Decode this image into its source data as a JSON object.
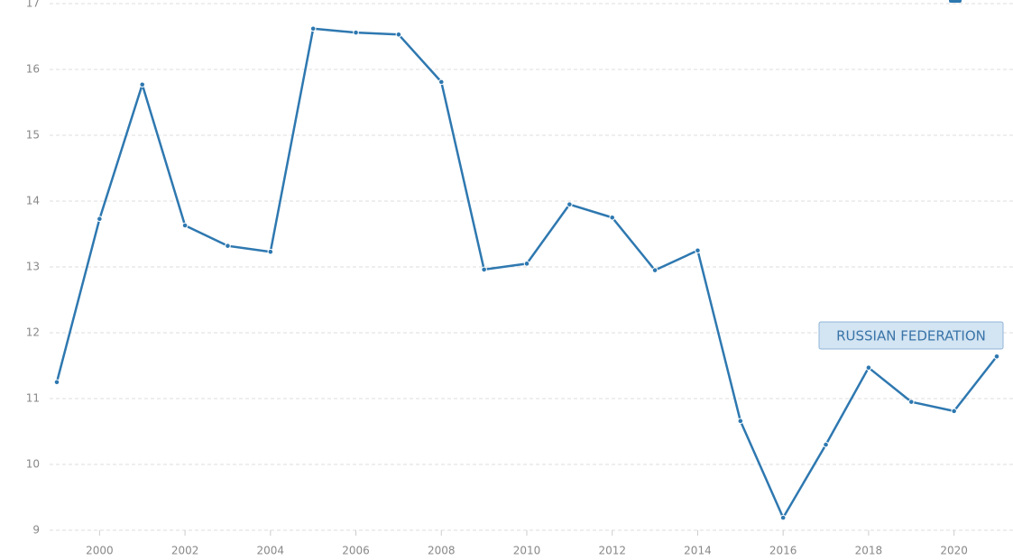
{
  "chart_data": {
    "type": "line",
    "x": [
      1999,
      2000,
      2001,
      2002,
      2003,
      2004,
      2005,
      2006,
      2007,
      2008,
      2009,
      2010,
      2011,
      2012,
      2013,
      2014,
      2015,
      2016,
      2017,
      2018,
      2019,
      2020,
      2021
    ],
    "series": [
      {
        "name": "RUSSIAN FEDERATION",
        "color": "#2e78b0",
        "values": [
          11.25,
          13.73,
          15.77,
          13.63,
          13.32,
          13.23,
          16.62,
          16.56,
          16.53,
          15.81,
          12.96,
          13.05,
          13.95,
          13.75,
          12.95,
          13.25,
          10.66,
          9.19,
          10.3,
          11.47,
          10.95,
          10.81,
          11.64
        ]
      }
    ],
    "xlim": [
      1999,
      2021
    ],
    "xticks": [
      2000,
      2002,
      2004,
      2006,
      2008,
      2010,
      2012,
      2014,
      2016,
      2018,
      2020
    ],
    "ylim": [
      9,
      17
    ],
    "yticks": [
      9,
      10,
      11,
      12,
      13,
      14,
      15,
      16,
      17
    ],
    "grid": true
  }
}
